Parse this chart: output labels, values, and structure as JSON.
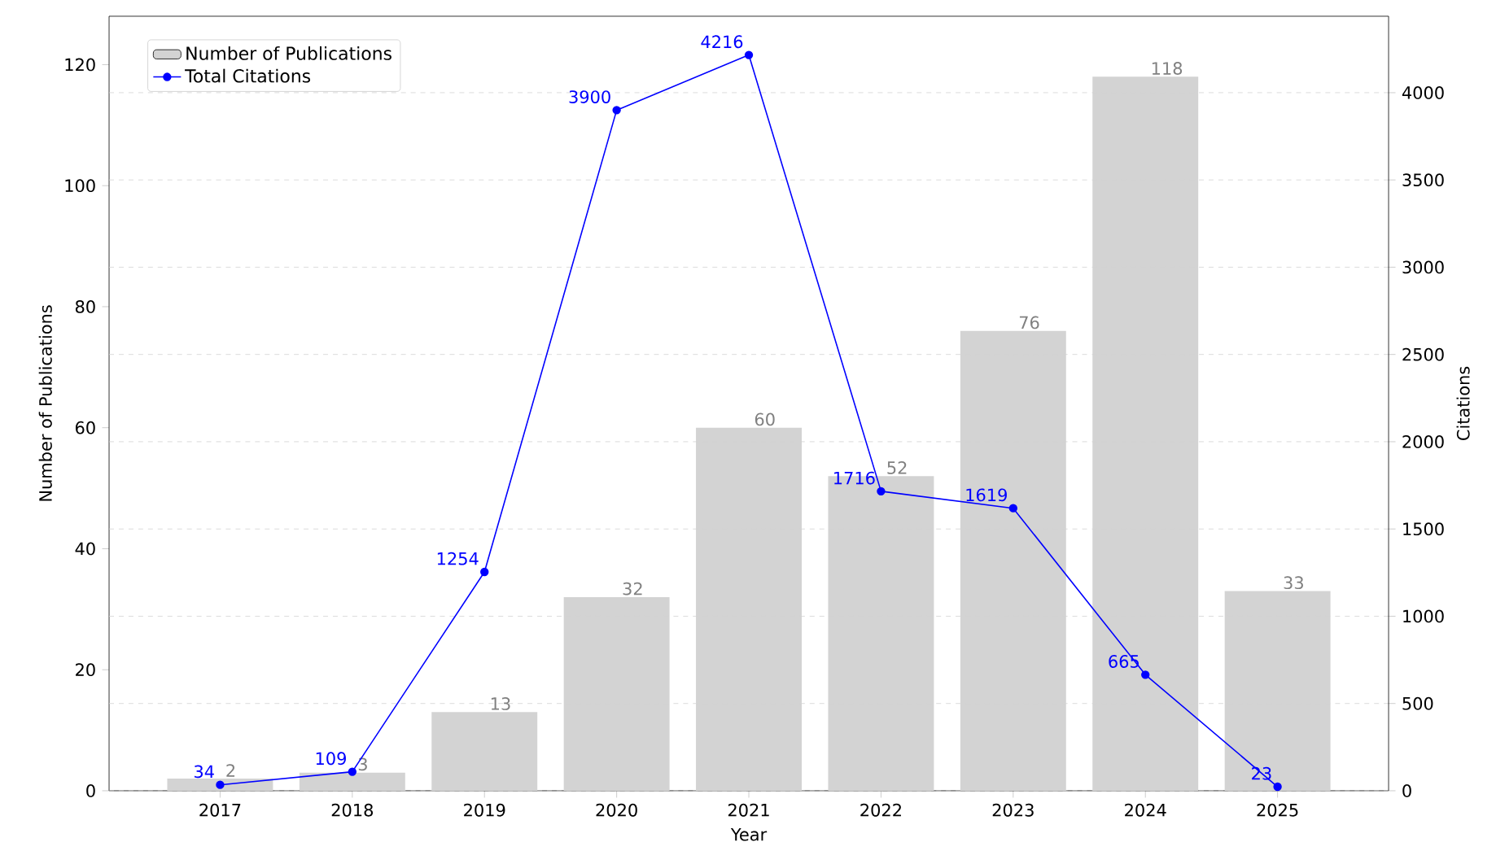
{
  "chart_data": {
    "type": "bar",
    "xlabel": "Year",
    "ylabel": "Number of Publications",
    "y2label": "Citations",
    "categories": [
      "2017",
      "2018",
      "2019",
      "2020",
      "2021",
      "2022",
      "2023",
      "2024",
      "2025"
    ],
    "series": [
      {
        "name": "Number of Publications",
        "color": "#d3d3d3",
        "values": [
          2,
          3,
          13,
          32,
          60,
          52,
          76,
          118,
          33
        ]
      },
      {
        "name": "Total Citations",
        "type": "line",
        "axis": "y2",
        "color": "#0000ff",
        "values": [
          34,
          109,
          1254,
          3900,
          4216,
          1716,
          1619,
          665,
          23
        ]
      }
    ],
    "ylim": [
      0,
      128
    ],
    "yticks": [
      0,
      20,
      40,
      60,
      80,
      100,
      120
    ],
    "y2lim": [
      0,
      4438
    ],
    "y2ticks": [
      0,
      500,
      1000,
      1500,
      2000,
      2500,
      3000,
      3500,
      4000
    ],
    "grid": "y",
    "legend": "top left",
    "marker": "circle",
    "line_style": "solid",
    "data_labels": true
  }
}
